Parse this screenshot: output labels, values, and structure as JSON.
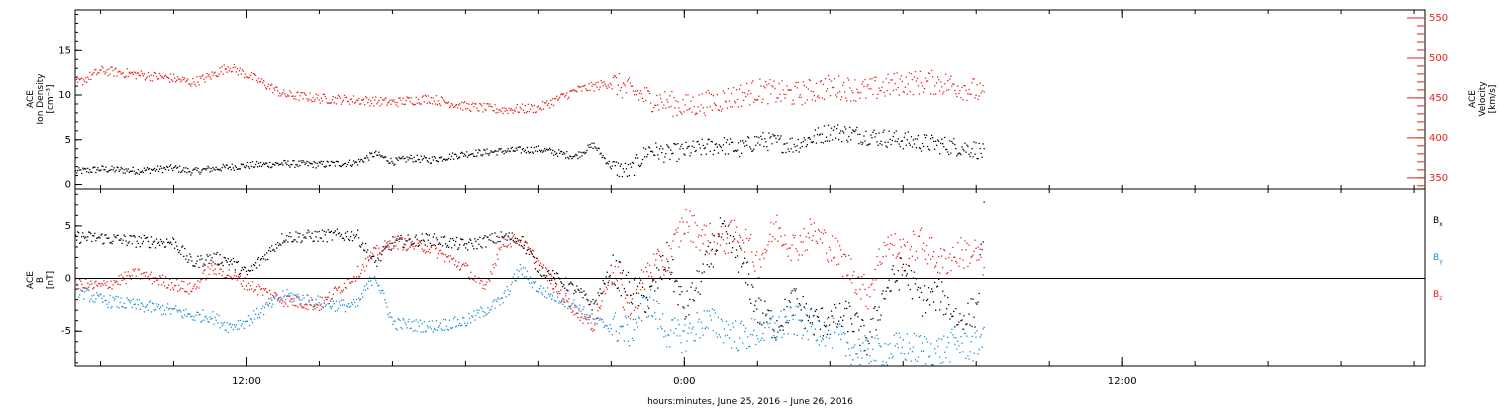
{
  "colors": {
    "density": "#000000",
    "velocity": "#e8211c",
    "bx": "#000000",
    "by": "#1b8fd6",
    "bz": "#e8211c",
    "axis": "#000000"
  },
  "chart_data": [
    {
      "type": "scatter",
      "panel": "top",
      "y_left_label": [
        "ACE",
        "Ion Density",
        "[cm⁻³]"
      ],
      "y_right_label": [
        "ACE",
        "Velocity",
        "[km/s]"
      ],
      "y_left_ticks": [
        "0",
        "5",
        "10",
        "15"
      ],
      "y_right_ticks": [
        "350",
        "400",
        "450",
        "500",
        "550"
      ],
      "ylim_left": [
        -0.5,
        19.5
      ],
      "ylim_right": [
        336,
        560
      ],
      "x_hours_range": [
        7.3,
        44.3
      ],
      "data_end_hours": 32.2,
      "series": [
        {
          "axis": "left",
          "x_hours": [
            7.3,
            8,
            9,
            10,
            10.5,
            11,
            11.5,
            12,
            13,
            14,
            15,
            15.5,
            16,
            16.5,
            17,
            18,
            19,
            20,
            21,
            21.5,
            22,
            22.5,
            23,
            23.5,
            24,
            25,
            25.5,
            26,
            27,
            28,
            29,
            30,
            31,
            32,
            32.2
          ],
          "values": [
            1.5,
            1.8,
            1.6,
            1.9,
            1.5,
            1.8,
            2.0,
            2.2,
            2.4,
            2.3,
            2.5,
            3.5,
            2.6,
            3.0,
            2.8,
            3.5,
            3.8,
            4.0,
            3.2,
            4.5,
            2.0,
            1.5,
            4.0,
            3.5,
            3.8,
            4.5,
            4.0,
            5.0,
            4.5,
            6.0,
            5.5,
            5.0,
            4.5,
            4.0,
            3.5
          ]
        },
        {
          "axis": "right",
          "x_hours": [
            7.3,
            8,
            9,
            10,
            10.5,
            11,
            11.5,
            12,
            13,
            14,
            15,
            16,
            17,
            18,
            19,
            20,
            21,
            21.5,
            22,
            23,
            24,
            25,
            26,
            27,
            28,
            29,
            30,
            31,
            32,
            32.2
          ],
          "values": [
            468,
            485,
            480,
            475,
            470,
            478,
            490,
            480,
            455,
            450,
            448,
            445,
            450,
            440,
            436,
            438,
            460,
            465,
            470,
            450,
            440,
            448,
            460,
            455,
            465,
            460,
            470,
            470,
            460,
            450
          ]
        }
      ]
    },
    {
      "type": "scatter",
      "panel": "bottom",
      "y_left_label": [
        "ACE",
        "B",
        "[nT]"
      ],
      "y_ticks": [
        "-5",
        "0",
        "5"
      ],
      "ylim": [
        -8.3,
        8.5
      ],
      "x_hours_range": [
        7.3,
        44.3
      ],
      "data_end_hours": 32.2,
      "legend_location": "right",
      "series": [
        {
          "name": "B",
          "sub": "x",
          "x_hours": [
            7.3,
            8,
            9,
            10,
            10.5,
            11,
            11.5,
            12,
            13,
            14,
            15,
            15.5,
            16,
            17,
            18,
            19,
            19.5,
            20,
            21,
            21.5,
            22,
            22.5,
            23,
            23.5,
            24,
            24.5,
            25,
            25.5,
            26,
            26.5,
            27,
            27.5,
            28,
            28.5,
            29,
            29.5,
            30,
            30.5,
            31,
            31.5,
            32,
            32.2
          ],
          "values": [
            4.0,
            3.9,
            3.6,
            3.5,
            1.5,
            2.0,
            1.8,
            0.5,
            4.0,
            4.1,
            4.2,
            1.5,
            3.5,
            3.8,
            3.2,
            4.0,
            3.8,
            1.0,
            -1.0,
            -2.5,
            1.0,
            -1.0,
            -2.0,
            2.0,
            -3.0,
            0.5,
            4.5,
            2.0,
            -3.0,
            -4.5,
            -2.0,
            -4.0,
            -4.0,
            -3.5,
            -6.0,
            -1.0,
            1.0,
            -2.0,
            -1.5,
            -4.0,
            -3.0,
            6.0
          ]
        },
        {
          "name": "B",
          "sub": "y",
          "x_hours": [
            7.3,
            8,
            9,
            10,
            10.5,
            11,
            11.5,
            12,
            13,
            14,
            14.5,
            15,
            15.5,
            16,
            17,
            18,
            19,
            19.5,
            20,
            21,
            21.5,
            22,
            22.5,
            23,
            23.5,
            24,
            24.5,
            25,
            25.5,
            26,
            27,
            28,
            28.5,
            29,
            30,
            31,
            31.5,
            32,
            32.2
          ],
          "values": [
            -1.0,
            -2.0,
            -2.5,
            -3.0,
            -3.5,
            -3.5,
            -4.5,
            -4.0,
            -1.5,
            -2.2,
            -2.5,
            -2.5,
            0.5,
            -4.2,
            -4.5,
            -4.0,
            -2.0,
            1.0,
            -1.0,
            -2.5,
            -4.0,
            -4.5,
            -5.0,
            -2.0,
            -5.0,
            -5.5,
            -4.0,
            -4.5,
            -5.5,
            -5.0,
            -4.0,
            -5.0,
            -6.5,
            -7.0,
            -6.5,
            -6.8,
            -6.0,
            -6.5,
            -4.5
          ]
        },
        {
          "name": "B",
          "sub": "z",
          "x_hours": [
            7.3,
            8,
            9,
            10,
            10.5,
            11,
            11.5,
            12,
            13,
            14,
            15,
            15.5,
            16,
            17,
            18,
            18.5,
            19,
            19.5,
            20,
            20.5,
            21,
            21.5,
            22,
            22.5,
            23,
            23.5,
            24,
            24.5,
            25,
            25.5,
            26,
            26.5,
            27,
            27.5,
            28,
            28.5,
            29,
            29.5,
            30,
            30.5,
            31,
            31.5,
            32,
            32.2
          ],
          "values": [
            -0.5,
            -0.7,
            0.5,
            -0.5,
            -1.0,
            1.0,
            0.5,
            -0.5,
            -2.0,
            -2.5,
            0.5,
            2.5,
            3.5,
            3.0,
            1.0,
            -1.0,
            3.5,
            3.8,
            1.5,
            -1.0,
            -3.0,
            -4.5,
            1.0,
            -3.0,
            1.0,
            1.5,
            5.5,
            4.0,
            3.5,
            4.5,
            1.5,
            5.0,
            3.0,
            4.5,
            3.0,
            1.0,
            -1.5,
            3.5,
            2.5,
            3.5,
            1.5,
            2.5,
            2.5,
            1.0
          ]
        }
      ]
    }
  ],
  "x_axis": {
    "tick_labels": [
      {
        "hours": 12,
        "label": "12:00"
      },
      {
        "hours": 24,
        "label": "0:00"
      },
      {
        "hours": 36,
        "label": "12:00"
      }
    ],
    "minor_step_hours": 2,
    "xlabel": "hours:minutes, June 25, 2016 – June 26, 2016"
  }
}
